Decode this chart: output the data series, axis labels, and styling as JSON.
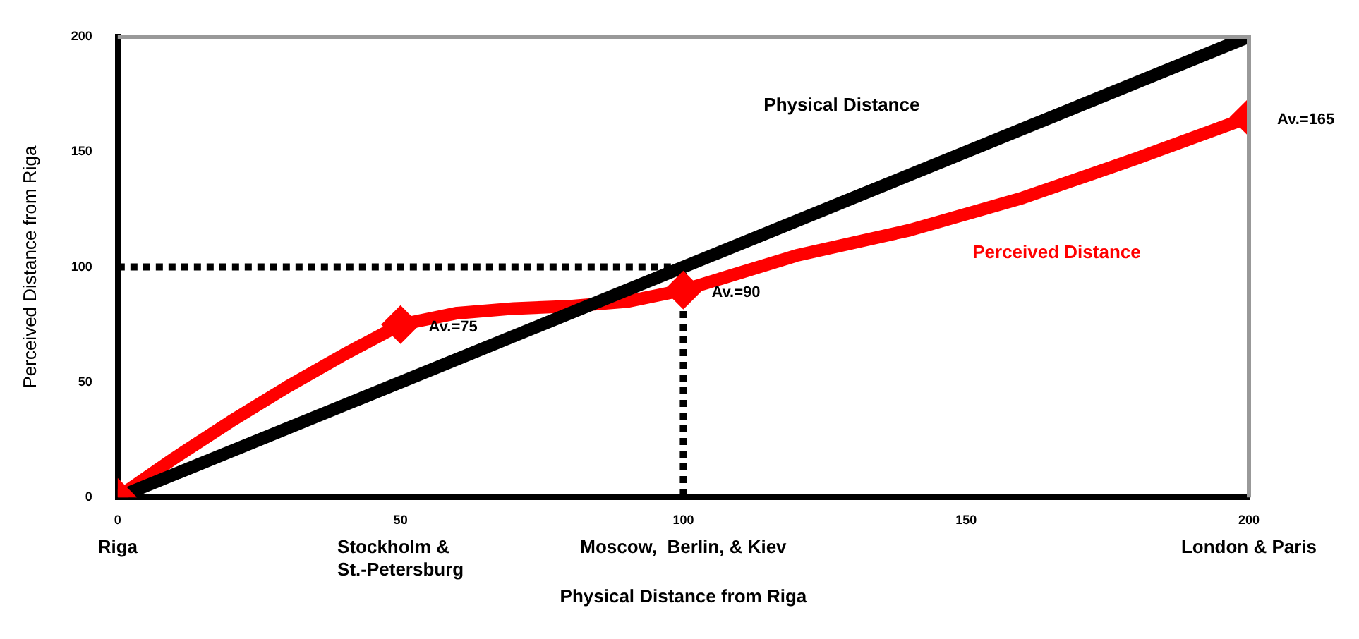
{
  "chart_data": {
    "type": "line",
    "xlabel": "Physical Distance from Riga",
    "ylabel": "Perceived Distance from Riga",
    "xlim": [
      0,
      200
    ],
    "xticks": [
      0,
      50,
      100,
      150,
      200
    ],
    "ylim": [
      0,
      200
    ],
    "yticks": [
      0,
      50,
      100,
      150,
      200
    ],
    "grid": false,
    "legend": false,
    "marker": "none",
    "series": [
      {
        "name": "Physical Distance",
        "color": "#000000",
        "x": [
          0,
          200
        ],
        "values": [
          0,
          200
        ],
        "line_style": "solid"
      },
      {
        "name": "Perceived Distance",
        "color": "#ff0000",
        "x": [
          0,
          10,
          20,
          30,
          40,
          50,
          60,
          70,
          80,
          90,
          100,
          120,
          140,
          160,
          180,
          200
        ],
        "values": [
          0,
          17,
          33,
          48,
          62,
          75,
          80,
          82,
          83,
          85,
          90,
          105,
          116,
          130,
          147,
          165
        ],
        "line_style": "solid"
      },
      {
        "type": "scatter",
        "color": "#ff0000",
        "marker": "diamond",
        "x": [
          0,
          50,
          100,
          200
        ],
        "values": [
          0,
          75,
          90,
          165
        ]
      },
      {
        "color": "#000000",
        "x": [
          0,
          100,
          100
        ],
        "values": [
          100,
          100,
          0
        ],
        "line_style": "dotted"
      }
    ],
    "annotations": [
      {
        "text": "Av.=75",
        "x": 50,
        "y": 75
      },
      {
        "text": "Av.=90",
        "x": 100,
        "y": 90
      },
      {
        "text": "Av.=165",
        "x": 200,
        "y": 165
      },
      "Riga",
      "Stockholm & St.-Petersburg",
      "Moscow,  Berlin, & Kiev",
      "London & Paris"
    ]
  }
}
